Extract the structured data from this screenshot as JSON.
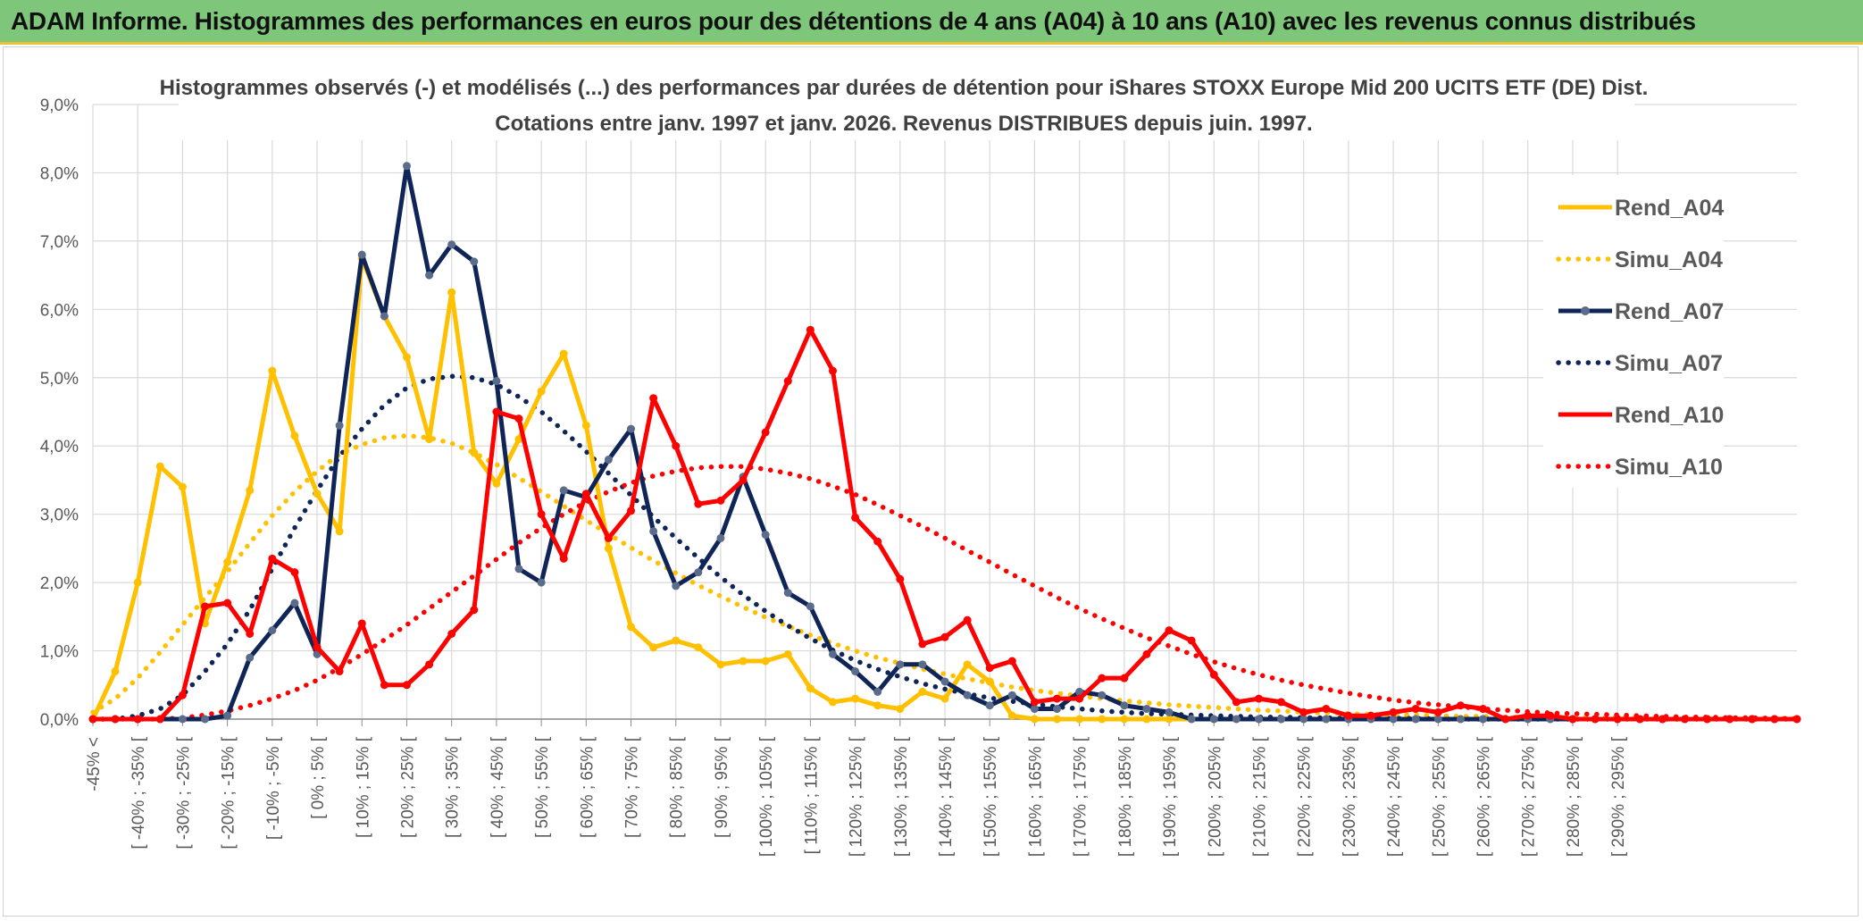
{
  "banner": {
    "title": "ADAM Informe. Histogrammes des performances en euros pour des détentions de 4 ans (A04) à 10 ans (A10) avec les revenus connus distribués"
  },
  "colors": {
    "banner_bg": "#7dc67a",
    "A04": "#ffc000",
    "A07": "#0f2557",
    "A10": "#ff0000",
    "A07_marker": "#5b6b8c",
    "grid": "#d9d9d9"
  },
  "chart_data": {
    "type": "line",
    "title": "Histogrammes observés (-) et modélisés (...) des performances par durées de détention pour iShares STOXX Europe Mid 200 UCITS ETF (DE) Dist.",
    "subtitle": "Cotations entre janv. 1997 et janv. 2026. Revenus DISTRIBUES depuis juin. 1997.",
    "xlabel": "",
    "ylabel": "",
    "ylim": [
      0,
      9
    ],
    "y_unit": "%",
    "y_ticks": [
      "0,0%",
      "1,0%",
      "2,0%",
      "3,0%",
      "4,0%",
      "5,0%",
      "6,0%",
      "7,0%",
      "8,0%",
      "9,0%"
    ],
    "grid": true,
    "legend_position": "top-right",
    "x_tick_labels": [
      "-45% <",
      "[ -40% ; -35% [",
      "[ -30% ; -25% [",
      "[ -20% ; -15% [",
      "[ -10% ; -5% [",
      "[ 0% ; 5% [",
      "[ 10% ; 15% [",
      "[ 20% ; 25% [",
      "[ 30% ; 35% [",
      "[ 40% ; 45% [",
      "[ 50% ; 55% [",
      "[ 60% ; 65% [",
      "[ 70% ; 75% [",
      "[ 80% ; 85% [",
      "[ 90% ; 95% [",
      "[ 100% ; 105% [",
      "[ 110% ; 115% [",
      "[ 120% ; 125% [",
      "[ 130% ; 135% [",
      "[ 140% ; 145% [",
      "[ 150% ; 155% [",
      "[ 160% ; 165% [",
      "[ 170% ; 175% [",
      "[ 180% ; 185% [",
      "[ 190% ; 195% [",
      "[ 200% ; 205% [",
      "[ 210% ; 215% [",
      "[ 220% ; 225% [",
      "[ 230% ; 235% [",
      "[ 240% ; 245% [",
      "[ 250% ; 255% [",
      "[ 260% ; 265% [",
      "[ 270% ; 275% [",
      "[ 280% ; 285% [",
      "[ 290% ; 295% ["
    ],
    "series": [
      {
        "name": "Rend_A04",
        "kind": "observed",
        "color": "#ffc000",
        "values": [
          0.0,
          0.7,
          2.0,
          3.7,
          3.4,
          1.4,
          2.3,
          3.35,
          5.1,
          4.15,
          3.3,
          2.75,
          6.75,
          5.9,
          5.3,
          4.1,
          6.25,
          3.9,
          3.45,
          4.1,
          4.8,
          5.35,
          4.3,
          2.5,
          1.35,
          1.05,
          1.15,
          1.05,
          0.8,
          0.85,
          0.85,
          0.95,
          0.45,
          0.25,
          0.3,
          0.2,
          0.15,
          0.4,
          0.3,
          0.8,
          0.55,
          0.05,
          0.0,
          0.0,
          0.0,
          0.0,
          0.0,
          0.0,
          0.0,
          0.0,
          0.0,
          0.0,
          0.0,
          0.0,
          0.0,
          0.0,
          0.0,
          0.0,
          0.0,
          0.0,
          0.0,
          0.0,
          0.0,
          0.0,
          0.0,
          0.0,
          0.0,
          0.0,
          0.0,
          0.0,
          0.0,
          0.0,
          0.0,
          0.0,
          0.0,
          0.0,
          0.0
        ]
      },
      {
        "name": "Simu_A04",
        "kind": "modeled",
        "color": "#ffc000",
        "values": [
          0.1,
          0.3,
          0.6,
          0.98,
          1.38,
          1.78,
          2.16,
          2.58,
          2.98,
          3.33,
          3.63,
          3.88,
          4.02,
          4.12,
          4.15,
          4.12,
          4.04,
          3.9,
          3.73,
          3.53,
          3.33,
          3.12,
          2.91,
          2.71,
          2.51,
          2.32,
          2.14,
          1.96,
          1.8,
          1.64,
          1.49,
          1.36,
          1.23,
          1.11,
          1.0,
          0.9,
          0.82,
          0.73,
          0.66,
          0.59,
          0.53,
          0.47,
          0.42,
          0.38,
          0.34,
          0.3,
          0.27,
          0.24,
          0.21,
          0.19,
          0.17,
          0.15,
          0.13,
          0.12,
          0.1,
          0.09,
          0.08,
          0.07,
          0.06,
          0.06,
          0.05,
          0.04,
          0.04,
          0.03,
          0.03,
          0.03,
          0.02,
          0.02,
          0.02,
          0.02,
          0.01,
          0.01,
          0.01,
          0.01,
          0.01,
          0.01,
          0.01
        ]
      },
      {
        "name": "Rend_A07",
        "kind": "observed",
        "color": "#0f2557",
        "values": [
          0.0,
          0.0,
          0.0,
          0.0,
          0.0,
          0.0,
          0.05,
          0.9,
          1.3,
          1.7,
          0.95,
          4.3,
          6.8,
          5.9,
          8.1,
          6.5,
          6.95,
          6.7,
          4.95,
          2.2,
          2.0,
          3.35,
          3.25,
          3.8,
          4.25,
          2.75,
          1.95,
          2.15,
          2.65,
          3.55,
          2.7,
          1.85,
          1.65,
          0.95,
          0.7,
          0.4,
          0.8,
          0.8,
          0.55,
          0.35,
          0.2,
          0.35,
          0.15,
          0.15,
          0.4,
          0.35,
          0.2,
          0.15,
          0.1,
          0.0,
          0.0,
          0.0,
          0.0,
          0.0,
          0.0,
          0.0,
          0.0,
          0.0,
          0.0,
          0.0,
          0.0,
          0.0,
          0.0,
          0.0,
          0.0,
          0.0,
          0.0,
          0.0,
          0.0,
          0.0,
          0.0,
          0.0,
          0.0,
          0.0,
          0.0,
          0.0,
          0.0
        ]
      },
      {
        "name": "Simu_A07",
        "kind": "modeled",
        "color": "#0f2557",
        "values": [
          0.0,
          0.0,
          0.05,
          0.15,
          0.35,
          0.7,
          1.1,
          1.6,
          2.2,
          2.8,
          3.35,
          3.85,
          4.25,
          4.6,
          4.85,
          4.98,
          5.02,
          5.0,
          4.9,
          4.72,
          4.5,
          4.22,
          3.92,
          3.6,
          3.28,
          2.96,
          2.65,
          2.36,
          2.08,
          1.82,
          1.58,
          1.37,
          1.18,
          1.01,
          0.86,
          0.73,
          0.62,
          0.52,
          0.44,
          0.37,
          0.31,
          0.26,
          0.22,
          0.18,
          0.15,
          0.12,
          0.1,
          0.08,
          0.07,
          0.06,
          0.05,
          0.04,
          0.03,
          0.03,
          0.02,
          0.02,
          0.01,
          0.01,
          0.01,
          0.01,
          0.0,
          0.0,
          0.0,
          0.0,
          0.0,
          0.0,
          0.0,
          0.0,
          0.0,
          0.0,
          0.0,
          0.0,
          0.0,
          0.0,
          0.0,
          0.0,
          0.0
        ]
      },
      {
        "name": "Rend_A10",
        "kind": "observed",
        "color": "#ff0000",
        "values": [
          0.0,
          0.0,
          0.0,
          0.0,
          0.35,
          1.65,
          1.7,
          1.25,
          2.35,
          2.15,
          1.05,
          0.7,
          1.4,
          0.5,
          0.5,
          0.8,
          1.25,
          1.6,
          4.5,
          4.4,
          3.0,
          2.35,
          3.3,
          2.65,
          3.05,
          4.7,
          4.0,
          3.15,
          3.2,
          3.5,
          4.2,
          4.95,
          5.7,
          5.1,
          2.95,
          2.6,
          2.05,
          1.1,
          1.2,
          1.45,
          0.75,
          0.85,
          0.25,
          0.3,
          0.3,
          0.6,
          0.6,
          0.95,
          1.3,
          1.15,
          0.65,
          0.25,
          0.3,
          0.25,
          0.1,
          0.15,
          0.05,
          0.05,
          0.1,
          0.15,
          0.1,
          0.2,
          0.15,
          0.0,
          0.05,
          0.05,
          0.0,
          0.0,
          0.0,
          0.0,
          0.0,
          0.0,
          0.0,
          0.0,
          0.0,
          0.0,
          0.0
        ]
      },
      {
        "name": "Simu_A10",
        "kind": "modeled",
        "color": "#ff0000",
        "values": [
          0.0,
          0.0,
          0.0,
          0.0,
          0.02,
          0.06,
          0.12,
          0.2,
          0.3,
          0.42,
          0.57,
          0.75,
          0.95,
          1.16,
          1.38,
          1.62,
          1.86,
          2.1,
          2.34,
          2.58,
          2.8,
          3.0,
          3.18,
          3.33,
          3.46,
          3.56,
          3.63,
          3.68,
          3.7,
          3.7,
          3.66,
          3.6,
          3.52,
          3.41,
          3.29,
          3.14,
          2.98,
          2.82,
          2.65,
          2.47,
          2.3,
          2.12,
          1.95,
          1.78,
          1.62,
          1.47,
          1.33,
          1.19,
          1.07,
          0.95,
          0.84,
          0.74,
          0.65,
          0.57,
          0.5,
          0.44,
          0.38,
          0.33,
          0.28,
          0.24,
          0.21,
          0.18,
          0.15,
          0.13,
          0.11,
          0.09,
          0.08,
          0.07,
          0.06,
          0.05,
          0.04,
          0.03,
          0.03,
          0.02,
          0.02,
          0.01,
          0.01
        ]
      }
    ]
  }
}
